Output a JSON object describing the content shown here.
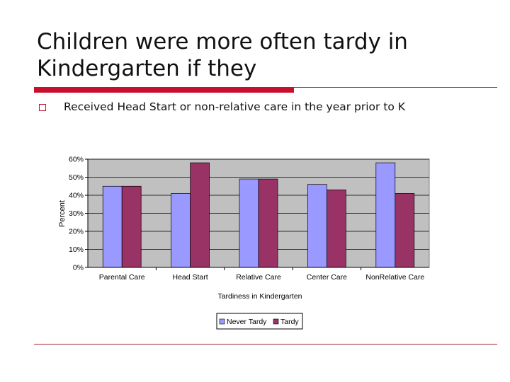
{
  "slide": {
    "title": "Children were more often tardy in Kindergarten if they",
    "bullet": "Received Head Start or non-relative care in the year prior to K"
  },
  "colors": {
    "accent": "#c8102e",
    "plot_bg": "#c0c0c0",
    "never_tardy": "#9999ff",
    "tardy": "#993366"
  },
  "chart_data": {
    "type": "bar",
    "categories": [
      "Parental Care",
      "Head Start",
      "Relative Care",
      "Center Care",
      "NonRelative Care"
    ],
    "series": [
      {
        "name": "Never Tardy",
        "values": [
          45,
          41,
          49,
          46,
          58
        ]
      },
      {
        "name": "Tardy",
        "values": [
          45,
          58,
          49,
          43,
          41
        ]
      }
    ],
    "xlabel": "Tardiness in Kindergarten",
    "ylabel": "Percent",
    "ylim": [
      0,
      60
    ],
    "yticks": [
      "0%",
      "10%",
      "20%",
      "30%",
      "40%",
      "50%",
      "60%"
    ],
    "grid": true,
    "legend_position": "bottom"
  }
}
